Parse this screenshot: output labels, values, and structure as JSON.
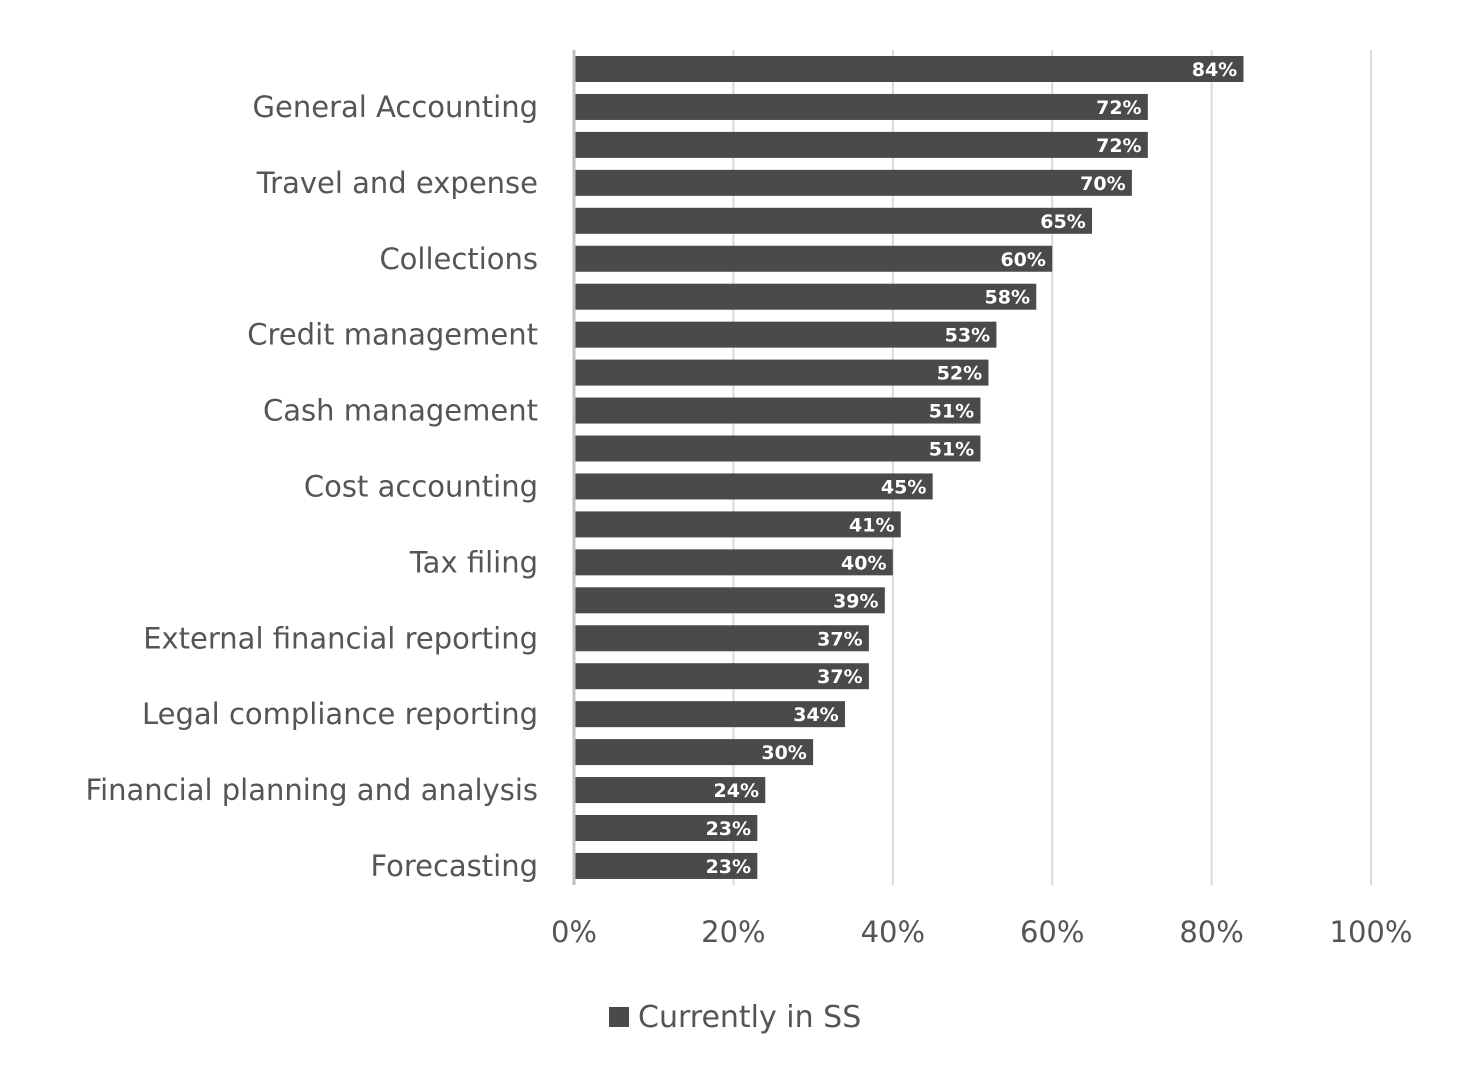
{
  "chart_data": {
    "type": "bar",
    "orientation": "horizontal",
    "categories": [
      "",
      "General Accounting",
      "",
      "Travel and expense",
      "",
      "Collections",
      "",
      "Credit management",
      "",
      "Cash management",
      "",
      "Cost accounting",
      "",
      "Tax filing",
      "",
      "External financial reporting",
      "",
      "Legal compliance reporting",
      "",
      "Financial planning and analysis",
      "",
      "Forecasting"
    ],
    "series": [
      {
        "name": "Currently in SS",
        "color": "#4a4a4a",
        "values": [
          84,
          72,
          72,
          70,
          65,
          60,
          58,
          53,
          52,
          51,
          51,
          45,
          41,
          40,
          39,
          37,
          37,
          34,
          30,
          24,
          23,
          23
        ],
        "data_labels": [
          "84%",
          "72%",
          "72%",
          "70%",
          "65%",
          "60%",
          "58%",
          "53%",
          "52%",
          "51%",
          "51%",
          "45%",
          "41%",
          "40%",
          "39%",
          "37%",
          "37%",
          "34%",
          "30%",
          "24%",
          "23%",
          "23%"
        ]
      }
    ],
    "xlim": [
      0,
      100
    ],
    "x_ticks": [
      "0%",
      "20%",
      "40%",
      "60%",
      "80%",
      "100%"
    ],
    "grid": true,
    "legend": {
      "position": "bottom",
      "entries": [
        "Currently in SS"
      ]
    }
  }
}
